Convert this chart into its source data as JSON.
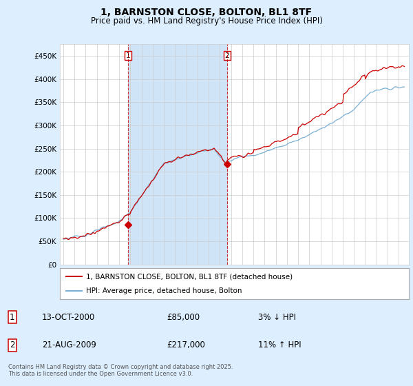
{
  "title": "1, BARNSTON CLOSE, BOLTON, BL1 8TF",
  "subtitle": "Price paid vs. HM Land Registry's House Price Index (HPI)",
  "legend_line1": "1, BARNSTON CLOSE, BOLTON, BL1 8TF (detached house)",
  "legend_line2": "HPI: Average price, detached house, Bolton",
  "annotation1_date": "13-OCT-2000",
  "annotation1_price": "£85,000",
  "annotation1_hpi": "3% ↓ HPI",
  "annotation2_date": "21-AUG-2009",
  "annotation2_price": "£217,000",
  "annotation2_hpi": "11% ↑ HPI",
  "footer": "Contains HM Land Registry data © Crown copyright and database right 2025.\nThis data is licensed under the Open Government Licence v3.0.",
  "hpi_color": "#7ab0d4",
  "price_color": "#cc0000",
  "vline_color": "#cc0000",
  "bg_color": "#ddeeff",
  "plot_bg_color": "#ffffff",
  "shade_color": "#d0e4f7",
  "ylim": [
    0,
    475000
  ],
  "yticks": [
    0,
    50000,
    100000,
    150000,
    200000,
    250000,
    300000,
    350000,
    400000,
    450000
  ],
  "transaction1_x": 2000.79,
  "transaction1_y": 85000,
  "transaction2_x": 2009.64,
  "transaction2_y": 217000,
  "xmin": 1994.7,
  "xmax": 2025.9
}
